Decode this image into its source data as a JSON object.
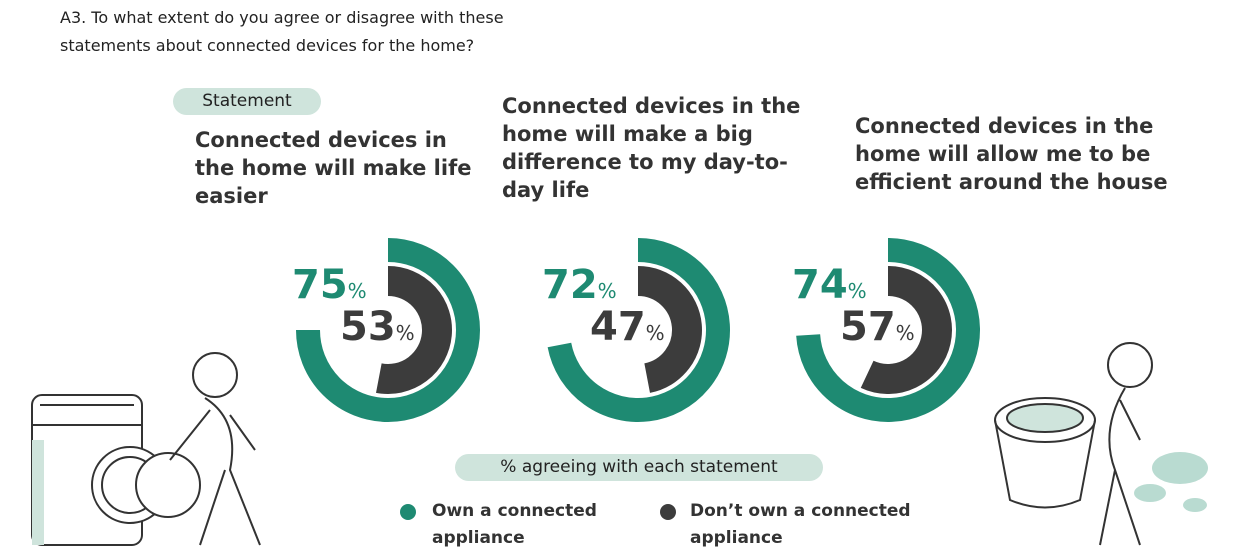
{
  "question": "A3. To what extent do you agree or disagree with these statements about connected devices for the home?",
  "statement_tag": "Statement",
  "chart_data": {
    "type": "radial_bar",
    "subtitle": "% agreeing with each statement",
    "categories": [
      "Connected devices in the home will make life easier",
      "Connected devices in the home will make a big difference to my day-to-day life",
      "Connected devices in the home will allow me to be efficient around the house"
    ],
    "series": [
      {
        "name": "Own a connected appliance",
        "color": "#1e8a72",
        "values": [
          75,
          72,
          74
        ],
        "value_labels": [
          "75%",
          "72%",
          "74%"
        ]
      },
      {
        "name": "Don’t own a connected appliance",
        "color": "#3c3c3c",
        "values": [
          53,
          47,
          57
        ],
        "value_labels": [
          "53%",
          "47%",
          "57%"
        ]
      }
    ],
    "ylim": [
      0,
      100
    ]
  }
}
